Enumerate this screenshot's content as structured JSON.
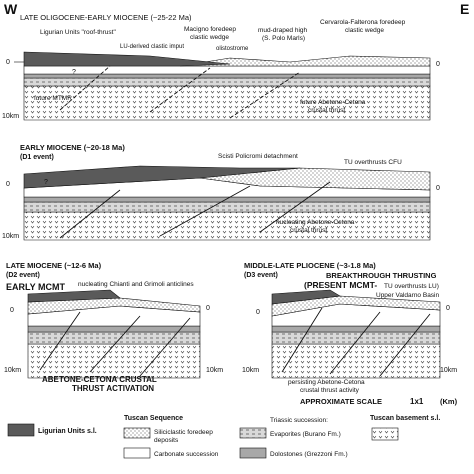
{
  "compass": {
    "west": "W",
    "east": "E"
  },
  "panels": {
    "p1": {
      "title": "LATE OLIGOCENE-EARLY MIOCENE (~25-22 Ma)",
      "labels": {
        "ligurian": "Ligurian Units \"roof-thrust\"",
        "macigno": "Macigno foredeep",
        "macigno2": "clastic wedge",
        "mud": "mud-draped high",
        "mud2": "(S. Polo Marls)",
        "cervarola": "Cervarola-Falterona foredeep",
        "cervarola2": "clastic wedge",
        "lu_input": "LU-derived clastic imput",
        "olistostrome": "olistostrome",
        "q": "?",
        "mtmr": "future MTMR",
        "abetone": "future Abetone-Cetona",
        "abetone2": "crustal thrust",
        "d0": "0",
        "d10": "10km",
        "r0": "0"
      }
    },
    "p2": {
      "title": "EARLY  MIOCENE (~20-18 Ma)",
      "event": "(D1 event)",
      "labels": {
        "scisti": "Scisti Policromi detachment",
        "tu": "TU overthrusts CFU",
        "q": "?",
        "nucleating": "nucleating Abetone-Cetona",
        "nucleating2": "crustal thrust",
        "d0": "0",
        "d10": "10km",
        "r0": "0"
      }
    },
    "p3": {
      "title": "LATE  MIOCENE (~12-6 Ma)",
      "event": "(D2 event)",
      "labels": {
        "early_mcmt": "EARLY MCMT",
        "chianti": "nucleating Chianti and Grimoli anticlines",
        "activation1": "ABETONE-CETONA CRUSTAL",
        "activation2": "THRUST  ACTIVATION",
        "d0": "0",
        "d10": "10km",
        "r0": "0",
        "r10": "10km"
      }
    },
    "p4": {
      "title": "MIDDLE-LATE PLIOCENE (~3-1.8 Ma)",
      "event": "(D3 event)",
      "labels": {
        "breakthrough": "BREAKTHROUGH THRUSTING",
        "present": "(PRESENT MCMT-",
        "tu_lu": "TU overthrusts LU)",
        "valdarno": "Upper Valdarno Basin",
        "persisting": "persisting Abetone-Cetona",
        "persisting2": "crustal thrust activity",
        "d0": "0",
        "d10": "10km",
        "r0": "0",
        "r10": "10km"
      }
    }
  },
  "scale": {
    "label": "APPROXIMATE  SCALE",
    "value": "1x1",
    "unit": "(Km)"
  },
  "legend": {
    "ligurian": "Ligurian Units s.l.",
    "tuscan_header": "Tuscan Sequence",
    "siliciclastic1": "Siliciclastic foredeep",
    "siliciclastic2": "deposits",
    "carbonate": "Carbonate succession",
    "triassic_header": "Triassic succession:",
    "evaporites": "Evaporites (Burano Fm.)",
    "dolostones": "Dolostones (Grezzoni Fm.)",
    "basement": "Tuscan basement s.l."
  },
  "colors": {
    "ligurian": "#5a5a5a",
    "dolostone": "#a8a8a8",
    "line": "#111111"
  }
}
